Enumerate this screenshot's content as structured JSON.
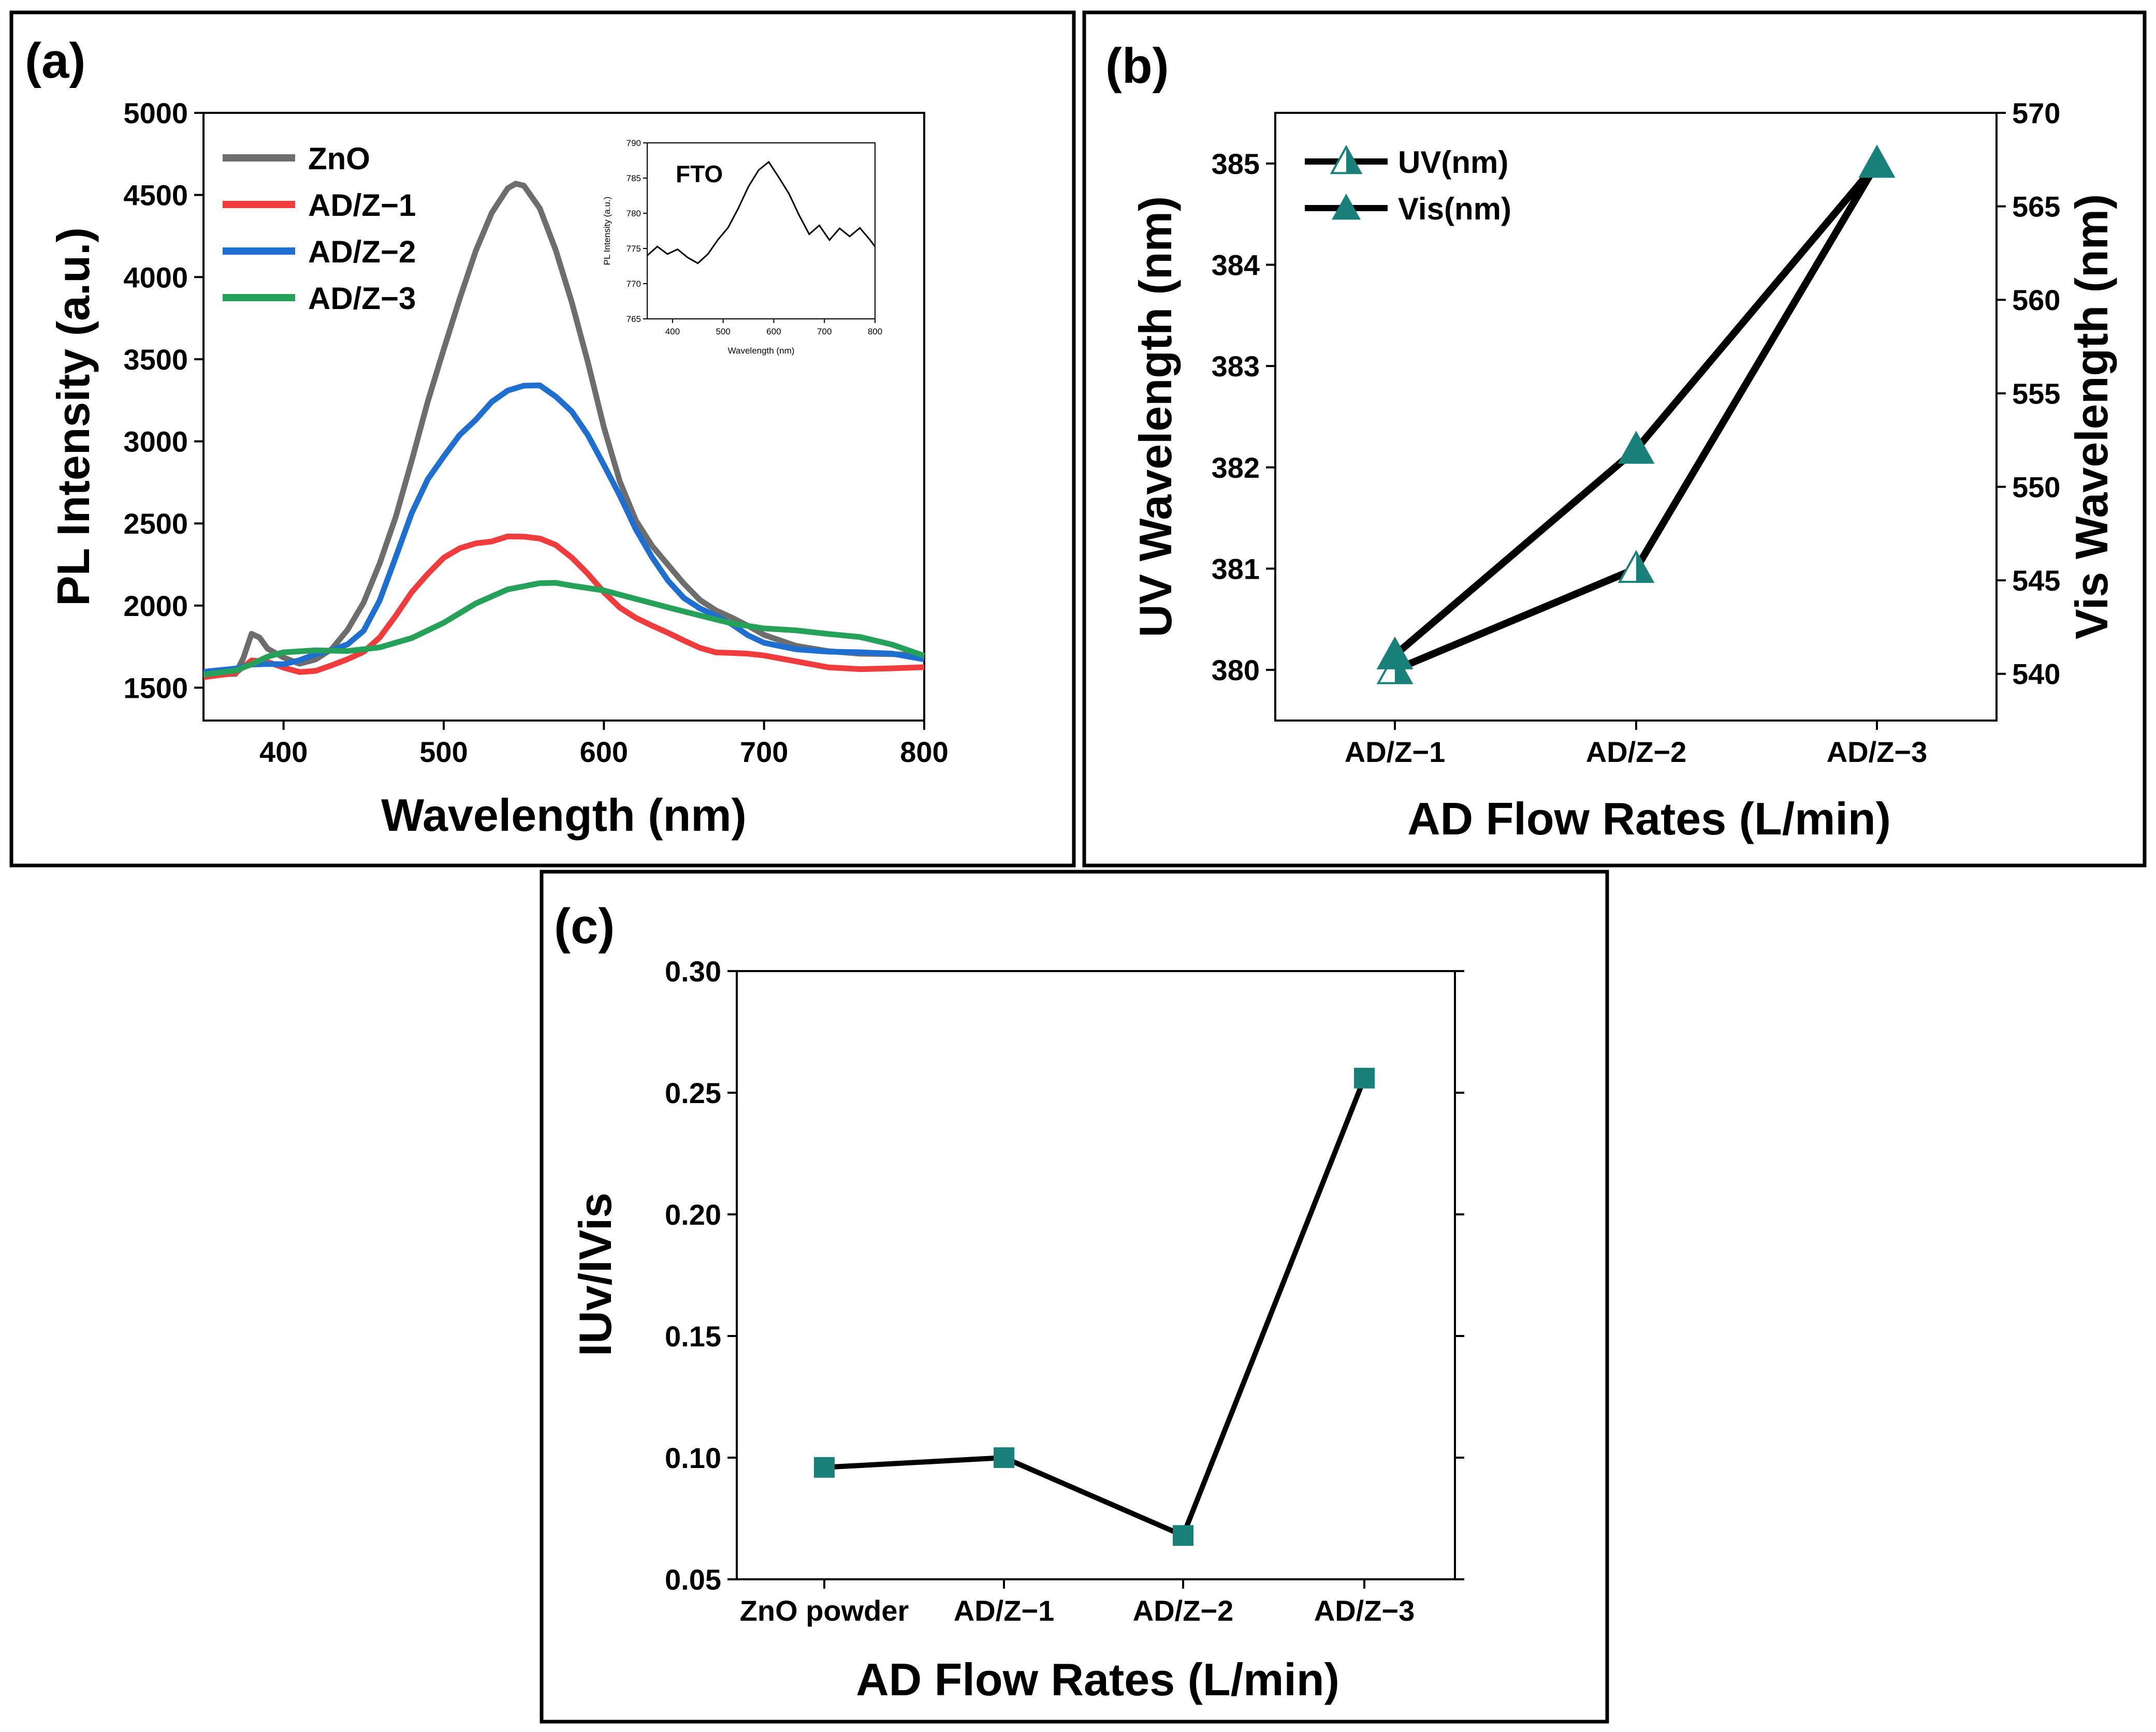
{
  "chart_data": [
    {
      "panel": "(a)",
      "type": "line",
      "title": "",
      "xlabel": "Wavelength (nm)",
      "ylabel": "PL Intensity (a.u.)",
      "xlim": [
        350,
        800
      ],
      "ylim": [
        1300,
        5000
      ],
      "xticks": [
        400,
        500,
        600,
        700,
        800
      ],
      "yticks": [
        1500,
        2000,
        2500,
        3000,
        3500,
        4000,
        4500,
        5000
      ],
      "legend_position": "top-left",
      "series": [
        {
          "name": "ZnO",
          "color": "#6d6d6d",
          "x": [
            350,
            370,
            375,
            380,
            385,
            390,
            400,
            410,
            420,
            430,
            440,
            450,
            460,
            470,
            480,
            490,
            500,
            510,
            520,
            530,
            540,
            545,
            550,
            560,
            570,
            580,
            590,
            600,
            610,
            620,
            630,
            640,
            650,
            660,
            670,
            680,
            690,
            700,
            720,
            740,
            760,
            780,
            800
          ],
          "y": [
            1580,
            1600,
            1700,
            1830,
            1790,
            1720,
            1680,
            1660,
            1690,
            1740,
            1840,
            2000,
            2250,
            2550,
            2900,
            3250,
            3550,
            3850,
            4150,
            4400,
            4560,
            4580,
            4550,
            4400,
            4150,
            3850,
            3500,
            3100,
            2750,
            2500,
            2350,
            2250,
            2150,
            2050,
            1970,
            1910,
            1860,
            1820,
            1770,
            1740,
            1710,
            1690,
            1680
          ]
        },
        {
          "name": "AD/Z−1",
          "color": "#f03c3c",
          "x": [
            350,
            370,
            380,
            390,
            400,
            410,
            420,
            430,
            440,
            450,
            460,
            470,
            480,
            490,
            500,
            510,
            520,
            530,
            540,
            550,
            560,
            570,
            580,
            590,
            600,
            610,
            620,
            630,
            640,
            650,
            660,
            670,
            680,
            690,
            700,
            720,
            740,
            760,
            780,
            800
          ],
          "y": [
            1580,
            1590,
            1650,
            1640,
            1620,
            1610,
            1620,
            1640,
            1660,
            1700,
            1800,
            1950,
            2100,
            2200,
            2280,
            2330,
            2370,
            2400,
            2440,
            2430,
            2400,
            2350,
            2280,
            2200,
            2100,
            2000,
            1920,
            1860,
            1820,
            1790,
            1760,
            1730,
            1710,
            1690,
            1680,
            1660,
            1640,
            1630,
            1620,
            1610
          ]
        },
        {
          "name": "AD/Z−2",
          "color": "#1f6fd1",
          "x": [
            350,
            370,
            380,
            390,
            400,
            410,
            420,
            430,
            440,
            450,
            460,
            470,
            480,
            490,
            500,
            510,
            520,
            530,
            540,
            550,
            560,
            570,
            580,
            590,
            600,
            610,
            620,
            630,
            640,
            650,
            660,
            670,
            680,
            690,
            700,
            720,
            740,
            760,
            780,
            800
          ],
          "y": [
            1580,
            1600,
            1640,
            1660,
            1660,
            1670,
            1690,
            1710,
            1760,
            1860,
            2050,
            2300,
            2550,
            2750,
            2900,
            3050,
            3150,
            3250,
            3300,
            3320,
            3330,
            3280,
            3200,
            3050,
            2850,
            2650,
            2450,
            2300,
            2170,
            2060,
            1980,
            1920,
            1870,
            1820,
            1790,
            1750,
            1720,
            1700,
            1690,
            1670
          ]
        },
        {
          "name": "AD/Z−3",
          "color": "#25a15a",
          "x": [
            350,
            370,
            380,
            390,
            400,
            420,
            440,
            460,
            480,
            500,
            520,
            540,
            560,
            570,
            580,
            600,
            620,
            640,
            660,
            680,
            700,
            720,
            740,
            760,
            780,
            800
          ],
          "y": [
            1580,
            1620,
            1660,
            1690,
            1700,
            1710,
            1720,
            1760,
            1820,
            1900,
            2000,
            2080,
            2130,
            2150,
            2140,
            2100,
            2030,
            1970,
            1930,
            1900,
            1880,
            1860,
            1820,
            1790,
            1750,
            1700
          ]
        }
      ],
      "inset": {
        "title": "FTO",
        "xlabel": "Wavelength (nm)",
        "ylabel": "PL Intensity (a.u.)",
        "xlim": [
          350,
          800
        ],
        "ylim": [
          765,
          790
        ],
        "xticks": [
          400,
          500,
          600,
          700,
          800
        ],
        "yticks": [
          765,
          770,
          775,
          780,
          785,
          790
        ],
        "series": [
          {
            "name": "FTO",
            "color": "#000000",
            "x": [
              350,
              370,
              390,
              410,
              430,
              450,
              470,
              490,
              510,
              530,
              550,
              570,
              590,
              610,
              630,
              650,
              670,
              690,
              710,
              730,
              750,
              770,
              790,
              800
            ],
            "y": [
              774,
              775,
              774,
              775,
              774,
              773,
              774,
              776,
              778,
              781,
              784,
              786,
              787,
              785,
              783,
              780,
              777,
              778,
              776,
              778,
              777,
              778,
              776,
              775
            ]
          }
        ]
      }
    },
    {
      "panel": "(b)",
      "type": "line",
      "title": "",
      "xlabel": "AD Flow Rates (L/min)",
      "ylabel": "UV Wavelength (nm)",
      "ylabel_right": "Vis Wavelength (nm)",
      "categories": [
        "AD/Z−1",
        "AD/Z−2",
        "AD/Z−3"
      ],
      "ylim": [
        379.5,
        385.5
      ],
      "yticks": [
        380,
        381,
        382,
        383,
        384,
        385
      ],
      "ylim_right": [
        537.5,
        570
      ],
      "yticks_right": [
        540,
        545,
        550,
        555,
        560,
        565,
        570
      ],
      "legend_position": "top-left",
      "series": [
        {
          "name": "UV(nm)",
          "axis": "left",
          "marker": "half-filled-triangle",
          "values": [
            380,
            381,
            385
          ]
        },
        {
          "name": "Vis(nm)",
          "axis": "right",
          "marker": "filled-triangle",
          "values": [
            541,
            552,
            567.3
          ]
        }
      ],
      "marker_color": "#1a807a"
    },
    {
      "panel": "(c)",
      "type": "line",
      "title": "",
      "xlabel": "AD Flow Rates (L/min)",
      "ylabel": "IUv/IVis",
      "categories": [
        "ZnO powder",
        "AD/Z−1",
        "AD/Z−2",
        "AD/Z−3"
      ],
      "ylim": [
        0.05,
        0.3
      ],
      "yticks": [
        "0.05",
        "0.10",
        "0.15",
        "0.20",
        "0.25",
        "0.30"
      ],
      "series": [
        {
          "name": "IUv/IVis",
          "marker": "square",
          "values": [
            0.096,
            0.1,
            0.068,
            0.256
          ]
        }
      ],
      "marker_color": "#1a807a"
    }
  ]
}
